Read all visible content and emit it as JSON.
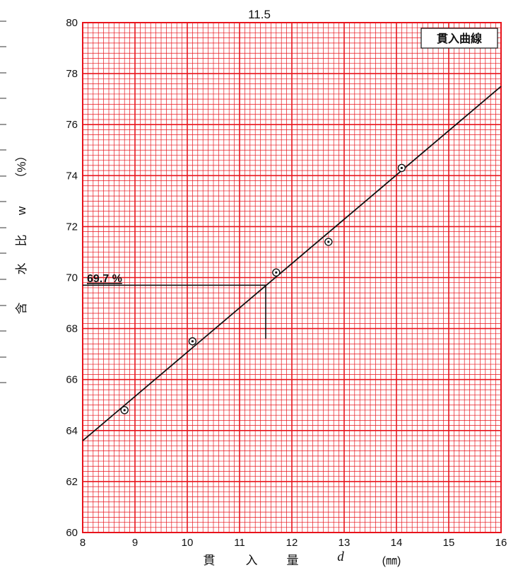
{
  "chart_data": {
    "type": "scatter",
    "title": "11.5",
    "legend_label": "貫入曲線",
    "legend_position": "top-right",
    "xlabel_parts": [
      "貫",
      "入",
      "量",
      "d",
      "(㎜)"
    ],
    "ylabel_parts": [
      "含",
      "水",
      "比",
      "w",
      "（%）"
    ],
    "xlim": [
      8,
      16
    ],
    "ylim": [
      60,
      80
    ],
    "x_ticks": [
      8,
      9,
      10,
      11,
      12,
      13,
      14,
      15,
      16
    ],
    "y_ticks": [
      60,
      62,
      64,
      66,
      68,
      70,
      72,
      74,
      76,
      78,
      80
    ],
    "grid": true,
    "grid_color": "#e8141c",
    "points": [
      {
        "x": 8.8,
        "y": 64.8
      },
      {
        "x": 10.1,
        "y": 67.5
      },
      {
        "x": 11.7,
        "y": 70.2
      },
      {
        "x": 12.7,
        "y": 71.4
      },
      {
        "x": 14.1,
        "y": 74.3
      }
    ],
    "fit_line": {
      "x": [
        8,
        16
      ],
      "y": [
        63.6,
        77.5
      ]
    },
    "reference": {
      "x": 11.5,
      "y": 69.7,
      "y_label": "69.7 %",
      "x_drop_to": 67.6
    }
  }
}
